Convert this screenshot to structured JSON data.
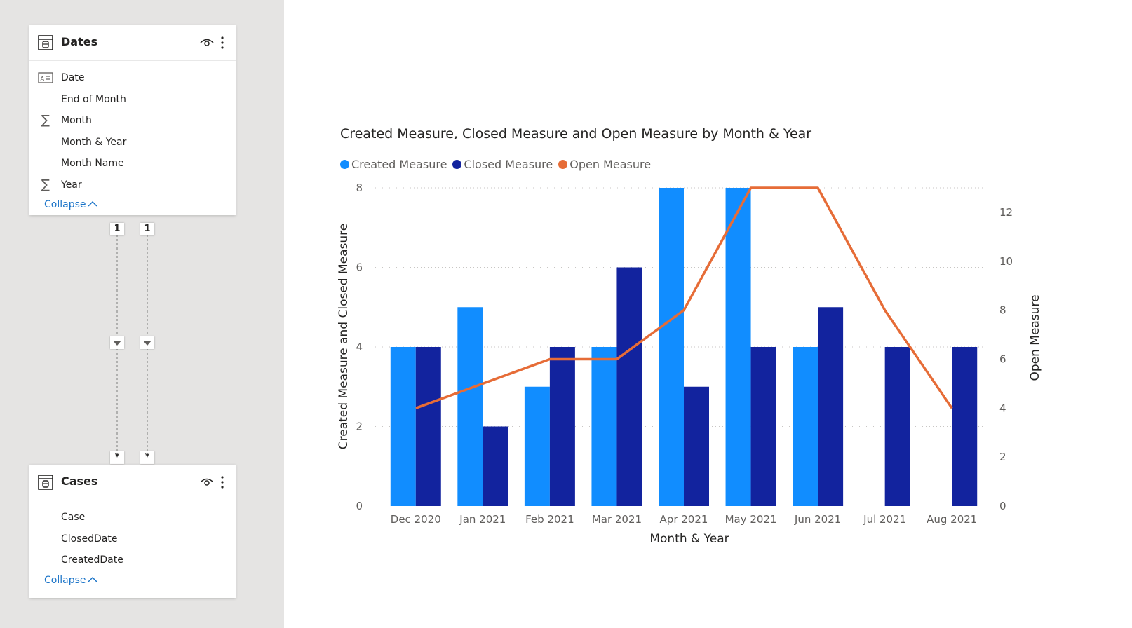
{
  "model": {
    "tables": [
      {
        "name": "Dates",
        "fields": [
          {
            "name": "Date",
            "icon": "calendar-table-icon"
          },
          {
            "name": "End of Month",
            "icon": ""
          },
          {
            "name": "Month",
            "icon": "sigma-icon"
          },
          {
            "name": "Month & Year",
            "icon": ""
          },
          {
            "name": "Month Name",
            "icon": ""
          },
          {
            "name": "Year",
            "icon": "sigma-icon"
          }
        ],
        "collapse_label": "Collapse"
      },
      {
        "name": "Cases",
        "fields": [
          {
            "name": "Case",
            "icon": ""
          },
          {
            "name": "ClosedDate",
            "icon": ""
          },
          {
            "name": "CreatedDate",
            "icon": ""
          }
        ],
        "collapse_label": "Collapse"
      }
    ],
    "relationships": [
      {
        "one_side": "1",
        "many_side": "*"
      },
      {
        "one_side": "1",
        "many_side": "*"
      }
    ]
  },
  "colors": {
    "created": "#118dff",
    "closed": "#12239e",
    "open": "#e66c37",
    "link": "#1b74c8"
  },
  "chart_data": {
    "type": "bar",
    "title": "Created Measure, Closed Measure and Open Measure by Month & Year",
    "xlabel": "Month & Year",
    "ylabel": "Created Measure and Closed Measure",
    "y2label": "Open Measure",
    "categories": [
      "Dec 2020",
      "Jan 2021",
      "Feb 2021",
      "Mar 2021",
      "Apr 2021",
      "May 2021",
      "Jun 2021",
      "Jul 2021",
      "Aug 2021"
    ],
    "series": [
      {
        "name": "Created Measure",
        "type": "bar",
        "axis": "left",
        "values": [
          4,
          5,
          3,
          4,
          8,
          8,
          4,
          null,
          null
        ]
      },
      {
        "name": "Closed Measure",
        "type": "bar",
        "axis": "left",
        "values": [
          4,
          2,
          4,
          6,
          3,
          4,
          5,
          4,
          4
        ]
      },
      {
        "name": "Open Measure",
        "type": "line",
        "axis": "right",
        "values": [
          4,
          5,
          6,
          6,
          8,
          13,
          13,
          8,
          4
        ]
      }
    ],
    "ylim": [
      0,
      8
    ],
    "yticks": [
      0,
      2,
      4,
      6,
      8
    ],
    "y2lim": [
      0,
      13
    ],
    "y2ticks": [
      0,
      2,
      4,
      6,
      8,
      10,
      12
    ],
    "grid": true,
    "legend_position": "top-left"
  }
}
